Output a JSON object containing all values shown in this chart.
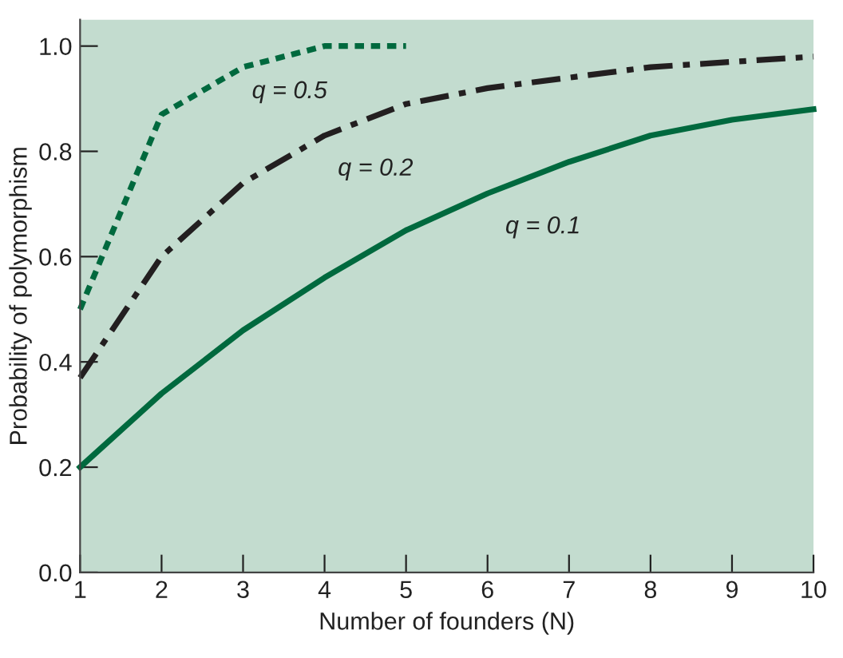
{
  "chart_data": {
    "type": "line",
    "xlabel": "Number of founders (N)",
    "ylabel": "Probability of polymorphism",
    "xlim": [
      1,
      10
    ],
    "ylim": [
      0,
      1.05
    ],
    "xticks": [
      1,
      2,
      3,
      4,
      5,
      6,
      7,
      8,
      9,
      10
    ],
    "yticks": [
      {
        "value": 0,
        "label": "0.0"
      },
      {
        "value": 0.2,
        "label": "0.2"
      },
      {
        "value": 0.4,
        "label": "0.4"
      },
      {
        "value": 0.6,
        "label": "0.6"
      },
      {
        "value": 0.8,
        "label": "0.8"
      },
      {
        "value": 1,
        "label": "1.0"
      }
    ],
    "grid": false,
    "legend": false,
    "marker": "none",
    "series": [
      {
        "name": "q = 0.5",
        "color": "#00693e",
        "line_style": "dotted",
        "x": [
          1,
          2,
          3,
          4,
          5
        ],
        "values": [
          0.5,
          0.87,
          0.96,
          1.0,
          1.0
        ]
      },
      {
        "name": "q = 0.2",
        "color": "#231f20",
        "line_style": "dashdot",
        "x": [
          1,
          2,
          3,
          4,
          5,
          6,
          7,
          8,
          9,
          10
        ],
        "values": [
          0.37,
          0.6,
          0.74,
          0.83,
          0.89,
          0.92,
          0.94,
          0.96,
          0.97,
          0.98
        ]
      },
      {
        "name": "q = 0.1",
        "color": "#00693e",
        "line_style": "solid",
        "x": [
          1,
          2,
          3,
          4,
          5,
          6,
          7,
          8,
          9,
          10
        ],
        "values": [
          0.2,
          0.34,
          0.46,
          0.56,
          0.65,
          0.72,
          0.78,
          0.83,
          0.86,
          0.88
        ]
      }
    ]
  }
}
